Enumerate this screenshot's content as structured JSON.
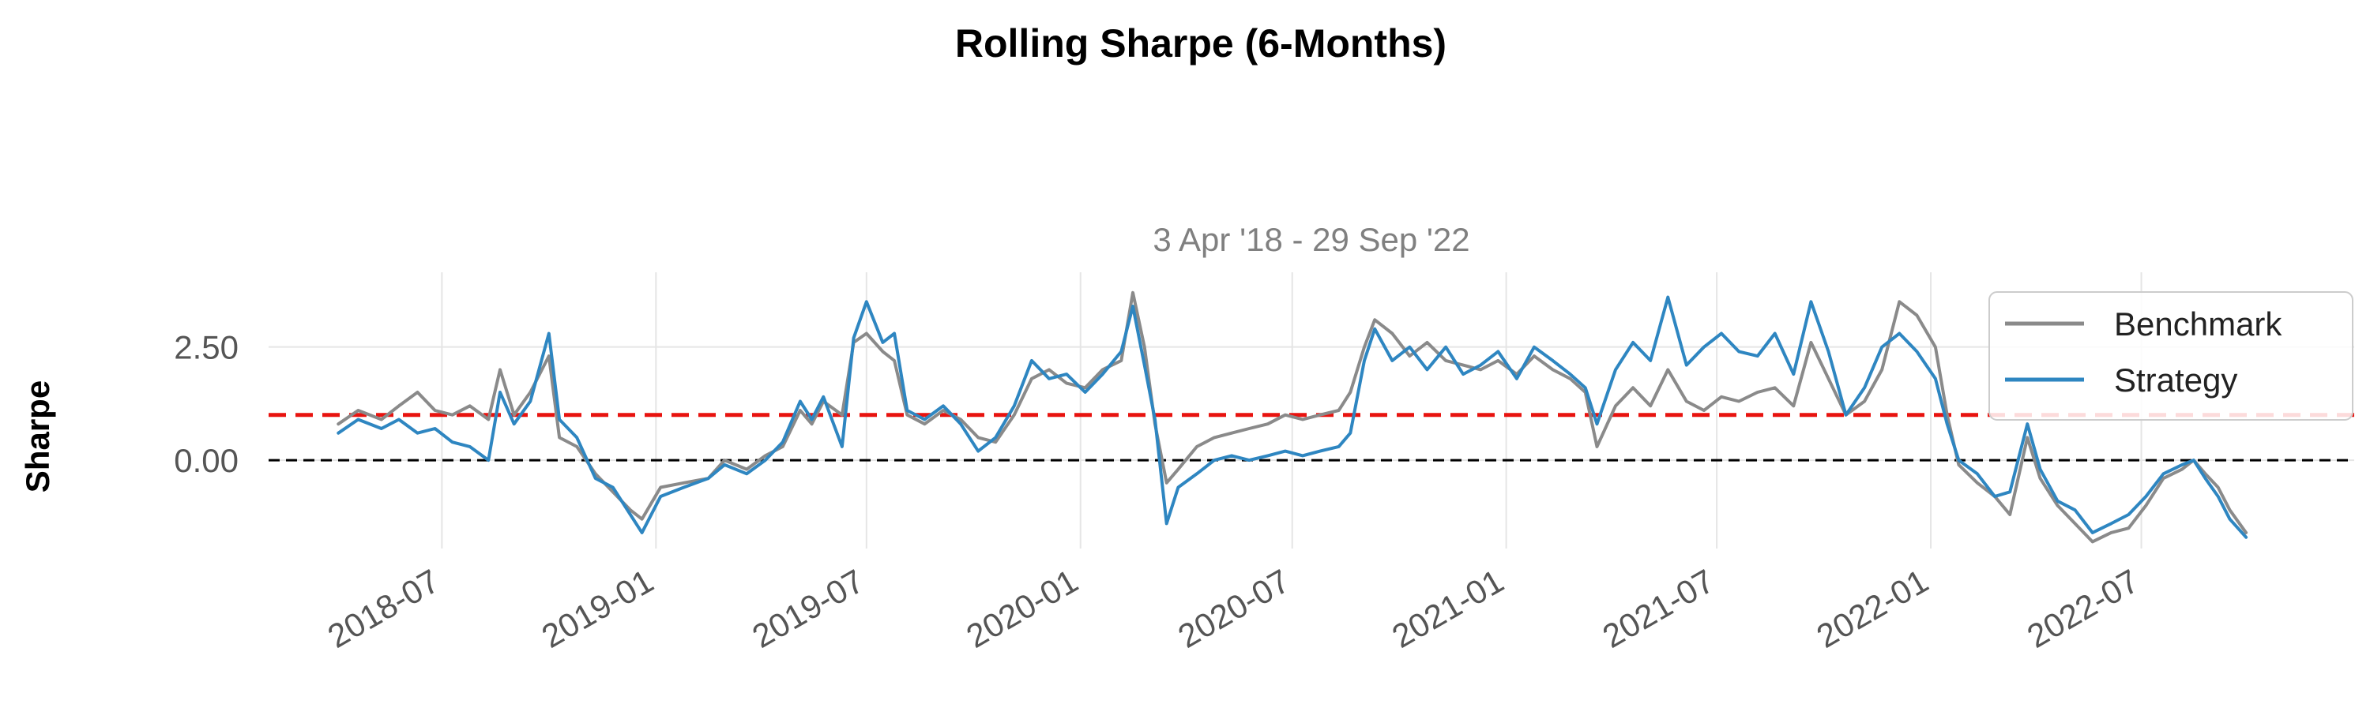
{
  "chart_data": {
    "type": "line",
    "title": "Rolling Sharpe (6-Months)",
    "subtitle": "3 Apr '18 - 29 Sep '22",
    "ylabel": "Sharpe",
    "xlabel": "",
    "x_range": [
      "2018-04-03",
      "2022-09-29"
    ],
    "xlim": [
      "2018-02-02",
      "2022-12-31"
    ],
    "ylim": [
      -1.95,
      4.15
    ],
    "x_ticks": [
      "2018-07",
      "2019-01",
      "2019-07",
      "2020-01",
      "2020-07",
      "2021-01",
      "2021-07",
      "2022-01",
      "2022-07"
    ],
    "y_ticks": [
      {
        "value": 0,
        "label": "0.00"
      },
      {
        "value": 2.5,
        "label": "2.50"
      }
    ],
    "grid": true,
    "legend_position": "top-right",
    "reference_lines": [
      {
        "value": 1.0,
        "color": "#e8130f",
        "style": "dashed"
      },
      {
        "value": 0.0,
        "color": "#000000",
        "style": "dashed"
      }
    ],
    "series": [
      {
        "name": "Benchmark",
        "color": "#8a8a8a",
        "points": [
          [
            "2018-04-03",
            0.8
          ],
          [
            "2018-04-20",
            1.1
          ],
          [
            "2018-05-10",
            0.9
          ],
          [
            "2018-05-25",
            1.2
          ],
          [
            "2018-06-10",
            1.5
          ],
          [
            "2018-06-25",
            1.1
          ],
          [
            "2018-07-10",
            1.0
          ],
          [
            "2018-07-25",
            1.2
          ],
          [
            "2018-08-10",
            0.9
          ],
          [
            "2018-08-20",
            2.0
          ],
          [
            "2018-09-01",
            1.0
          ],
          [
            "2018-09-15",
            1.5
          ],
          [
            "2018-10-01",
            2.3
          ],
          [
            "2018-10-10",
            0.5
          ],
          [
            "2018-10-25",
            0.3
          ],
          [
            "2018-11-10",
            -0.3
          ],
          [
            "2018-11-25",
            -0.7
          ],
          [
            "2018-12-10",
            -1.1
          ],
          [
            "2018-12-20",
            -1.3
          ],
          [
            "2019-01-05",
            -0.6
          ],
          [
            "2019-01-25",
            -0.5
          ],
          [
            "2019-02-15",
            -0.4
          ],
          [
            "2019-03-01",
            0.0
          ],
          [
            "2019-03-20",
            -0.2
          ],
          [
            "2019-04-05",
            0.1
          ],
          [
            "2019-04-20",
            0.3
          ],
          [
            "2019-05-05",
            1.1
          ],
          [
            "2019-05-15",
            0.8
          ],
          [
            "2019-05-25",
            1.3
          ],
          [
            "2019-06-10",
            1.0
          ],
          [
            "2019-06-20",
            2.6
          ],
          [
            "2019-07-01",
            2.8
          ],
          [
            "2019-07-15",
            2.4
          ],
          [
            "2019-07-25",
            2.2
          ],
          [
            "2019-08-05",
            1.0
          ],
          [
            "2019-08-20",
            0.8
          ],
          [
            "2019-09-05",
            1.1
          ],
          [
            "2019-09-20",
            0.9
          ],
          [
            "2019-10-05",
            0.5
          ],
          [
            "2019-10-20",
            0.4
          ],
          [
            "2019-11-05",
            1.0
          ],
          [
            "2019-11-20",
            1.8
          ],
          [
            "2019-12-05",
            2.0
          ],
          [
            "2019-12-20",
            1.7
          ],
          [
            "2020-01-05",
            1.6
          ],
          [
            "2020-01-20",
            2.0
          ],
          [
            "2020-02-05",
            2.2
          ],
          [
            "2020-02-15",
            3.7
          ],
          [
            "2020-02-25",
            2.5
          ],
          [
            "2020-03-05",
            0.8
          ],
          [
            "2020-03-15",
            -0.5
          ],
          [
            "2020-03-25",
            -0.2
          ],
          [
            "2020-04-10",
            0.3
          ],
          [
            "2020-04-25",
            0.5
          ],
          [
            "2020-05-10",
            0.6
          ],
          [
            "2020-05-25",
            0.7
          ],
          [
            "2020-06-10",
            0.8
          ],
          [
            "2020-06-25",
            1.0
          ],
          [
            "2020-07-10",
            0.9
          ],
          [
            "2020-07-25",
            1.0
          ],
          [
            "2020-08-10",
            1.1
          ],
          [
            "2020-08-20",
            1.5
          ],
          [
            "2020-09-01",
            2.5
          ],
          [
            "2020-09-10",
            3.1
          ],
          [
            "2020-09-25",
            2.8
          ],
          [
            "2020-10-10",
            2.3
          ],
          [
            "2020-10-25",
            2.6
          ],
          [
            "2020-11-10",
            2.2
          ],
          [
            "2020-11-25",
            2.1
          ],
          [
            "2020-12-10",
            2.0
          ],
          [
            "2020-12-25",
            2.2
          ],
          [
            "2021-01-10",
            1.9
          ],
          [
            "2021-01-25",
            2.3
          ],
          [
            "2021-02-10",
            2.0
          ],
          [
            "2021-02-25",
            1.8
          ],
          [
            "2021-03-10",
            1.5
          ],
          [
            "2021-03-20",
            0.3
          ],
          [
            "2021-04-05",
            1.2
          ],
          [
            "2021-04-20",
            1.6
          ],
          [
            "2021-05-05",
            1.2
          ],
          [
            "2021-05-20",
            2.0
          ],
          [
            "2021-06-05",
            1.3
          ],
          [
            "2021-06-20",
            1.1
          ],
          [
            "2021-07-05",
            1.4
          ],
          [
            "2021-07-20",
            1.3
          ],
          [
            "2021-08-05",
            1.5
          ],
          [
            "2021-08-20",
            1.6
          ],
          [
            "2021-09-05",
            1.2
          ],
          [
            "2021-09-20",
            2.6
          ],
          [
            "2021-10-05",
            1.8
          ],
          [
            "2021-10-20",
            1.0
          ],
          [
            "2021-11-05",
            1.3
          ],
          [
            "2021-11-20",
            2.0
          ],
          [
            "2021-12-05",
            3.5
          ],
          [
            "2021-12-20",
            3.2
          ],
          [
            "2022-01-05",
            2.5
          ],
          [
            "2022-01-15",
            1.0
          ],
          [
            "2022-01-25",
            -0.1
          ],
          [
            "2022-02-10",
            -0.5
          ],
          [
            "2022-02-25",
            -0.8
          ],
          [
            "2022-03-10",
            -1.2
          ],
          [
            "2022-03-25",
            0.5
          ],
          [
            "2022-04-05",
            -0.4
          ],
          [
            "2022-04-20",
            -1.0
          ],
          [
            "2022-05-05",
            -1.4
          ],
          [
            "2022-05-20",
            -1.8
          ],
          [
            "2022-06-05",
            -1.6
          ],
          [
            "2022-06-20",
            -1.5
          ],
          [
            "2022-07-05",
            -1.0
          ],
          [
            "2022-07-20",
            -0.4
          ],
          [
            "2022-08-05",
            -0.2
          ],
          [
            "2022-08-15",
            0.0
          ],
          [
            "2022-08-25",
            -0.3
          ],
          [
            "2022-09-05",
            -0.6
          ],
          [
            "2022-09-15",
            -1.1
          ],
          [
            "2022-09-29",
            -1.6
          ]
        ]
      },
      {
        "name": "Strategy",
        "color": "#2e86c1",
        "points": [
          [
            "2018-04-03",
            0.6
          ],
          [
            "2018-04-20",
            0.9
          ],
          [
            "2018-05-10",
            0.7
          ],
          [
            "2018-05-25",
            0.9
          ],
          [
            "2018-06-10",
            0.6
          ],
          [
            "2018-06-25",
            0.7
          ],
          [
            "2018-07-10",
            0.4
          ],
          [
            "2018-07-25",
            0.3
          ],
          [
            "2018-08-10",
            0.0
          ],
          [
            "2018-08-20",
            1.5
          ],
          [
            "2018-09-01",
            0.8
          ],
          [
            "2018-09-15",
            1.3
          ],
          [
            "2018-10-01",
            2.8
          ],
          [
            "2018-10-10",
            0.9
          ],
          [
            "2018-10-25",
            0.5
          ],
          [
            "2018-11-10",
            -0.4
          ],
          [
            "2018-11-25",
            -0.6
          ],
          [
            "2018-12-10",
            -1.2
          ],
          [
            "2018-12-20",
            -1.6
          ],
          [
            "2019-01-05",
            -0.8
          ],
          [
            "2019-01-25",
            -0.6
          ],
          [
            "2019-02-15",
            -0.4
          ],
          [
            "2019-03-01",
            -0.1
          ],
          [
            "2019-03-20",
            -0.3
          ],
          [
            "2019-04-05",
            0.0
          ],
          [
            "2019-04-20",
            0.4
          ],
          [
            "2019-05-05",
            1.3
          ],
          [
            "2019-05-15",
            0.9
          ],
          [
            "2019-05-25",
            1.4
          ],
          [
            "2019-06-10",
            0.3
          ],
          [
            "2019-06-20",
            2.7
          ],
          [
            "2019-07-01",
            3.5
          ],
          [
            "2019-07-15",
            2.6
          ],
          [
            "2019-07-25",
            2.8
          ],
          [
            "2019-08-05",
            1.1
          ],
          [
            "2019-08-20",
            0.9
          ],
          [
            "2019-09-05",
            1.2
          ],
          [
            "2019-09-20",
            0.8
          ],
          [
            "2019-10-05",
            0.2
          ],
          [
            "2019-10-20",
            0.5
          ],
          [
            "2019-11-05",
            1.2
          ],
          [
            "2019-11-20",
            2.2
          ],
          [
            "2019-12-05",
            1.8
          ],
          [
            "2019-12-20",
            1.9
          ],
          [
            "2020-01-05",
            1.5
          ],
          [
            "2020-01-20",
            1.9
          ],
          [
            "2020-02-05",
            2.4
          ],
          [
            "2020-02-15",
            3.4
          ],
          [
            "2020-02-25",
            2.1
          ],
          [
            "2020-03-05",
            0.9
          ],
          [
            "2020-03-15",
            -1.4
          ],
          [
            "2020-03-25",
            -0.6
          ],
          [
            "2020-04-10",
            -0.3
          ],
          [
            "2020-04-25",
            0.0
          ],
          [
            "2020-05-10",
            0.1
          ],
          [
            "2020-05-25",
            0.0
          ],
          [
            "2020-06-10",
            0.1
          ],
          [
            "2020-06-25",
            0.2
          ],
          [
            "2020-07-10",
            0.1
          ],
          [
            "2020-07-25",
            0.2
          ],
          [
            "2020-08-10",
            0.3
          ],
          [
            "2020-08-20",
            0.6
          ],
          [
            "2020-09-01",
            2.2
          ],
          [
            "2020-09-10",
            2.9
          ],
          [
            "2020-09-25",
            2.2
          ],
          [
            "2020-10-10",
            2.5
          ],
          [
            "2020-10-25",
            2.0
          ],
          [
            "2020-11-10",
            2.5
          ],
          [
            "2020-11-25",
            1.9
          ],
          [
            "2020-12-10",
            2.1
          ],
          [
            "2020-12-25",
            2.4
          ],
          [
            "2021-01-10",
            1.8
          ],
          [
            "2021-01-25",
            2.5
          ],
          [
            "2021-02-10",
            2.2
          ],
          [
            "2021-02-25",
            1.9
          ],
          [
            "2021-03-10",
            1.6
          ],
          [
            "2021-03-20",
            0.8
          ],
          [
            "2021-04-05",
            2.0
          ],
          [
            "2021-04-20",
            2.6
          ],
          [
            "2021-05-05",
            2.2
          ],
          [
            "2021-05-20",
            3.6
          ],
          [
            "2021-06-05",
            2.1
          ],
          [
            "2021-06-20",
            2.5
          ],
          [
            "2021-07-05",
            2.8
          ],
          [
            "2021-07-20",
            2.4
          ],
          [
            "2021-08-05",
            2.3
          ],
          [
            "2021-08-20",
            2.8
          ],
          [
            "2021-09-05",
            1.9
          ],
          [
            "2021-09-20",
            3.5
          ],
          [
            "2021-10-05",
            2.4
          ],
          [
            "2021-10-20",
            1.0
          ],
          [
            "2021-11-05",
            1.6
          ],
          [
            "2021-11-20",
            2.5
          ],
          [
            "2021-12-05",
            2.8
          ],
          [
            "2021-12-20",
            2.4
          ],
          [
            "2022-01-05",
            1.8
          ],
          [
            "2022-01-15",
            0.8
          ],
          [
            "2022-01-25",
            0.0
          ],
          [
            "2022-02-10",
            -0.3
          ],
          [
            "2022-02-25",
            -0.8
          ],
          [
            "2022-03-10",
            -0.7
          ],
          [
            "2022-03-25",
            0.8
          ],
          [
            "2022-04-05",
            -0.2
          ],
          [
            "2022-04-20",
            -0.9
          ],
          [
            "2022-05-05",
            -1.1
          ],
          [
            "2022-05-20",
            -1.6
          ],
          [
            "2022-06-05",
            -1.4
          ],
          [
            "2022-06-20",
            -1.2
          ],
          [
            "2022-07-05",
            -0.8
          ],
          [
            "2022-07-20",
            -0.3
          ],
          [
            "2022-08-05",
            -0.1
          ],
          [
            "2022-08-15",
            0.0
          ],
          [
            "2022-08-25",
            -0.4
          ],
          [
            "2022-09-05",
            -0.8
          ],
          [
            "2022-09-15",
            -1.3
          ],
          [
            "2022-09-29",
            -1.7
          ]
        ]
      }
    ]
  }
}
